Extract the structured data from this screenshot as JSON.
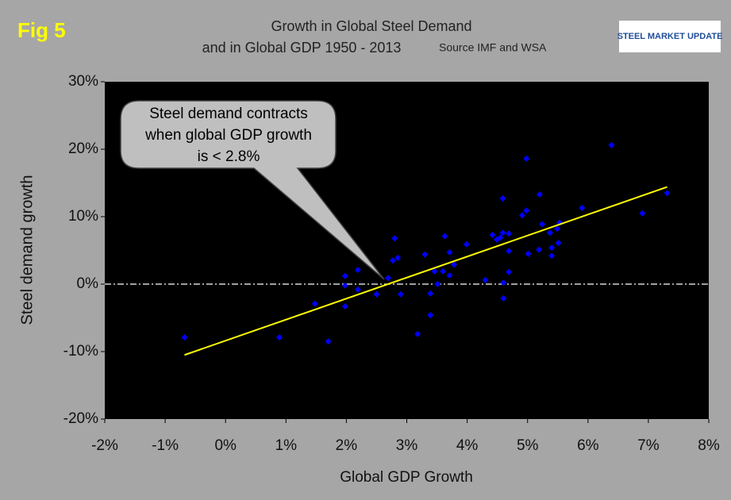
{
  "chart_data": {
    "type": "scatter",
    "figure_label": "Fig 5",
    "title": [
      "Growth in Global Steel Demand",
      "and in Global GDP 1950 - 2013"
    ],
    "source": "Source IMF and WSA",
    "logo": "STEEL MARKET UPDATE",
    "x_label": "Global GDP Growth",
    "y_label": "Steel demand growth",
    "annotation": [
      "Steel demand contracts",
      "when global GDP growth",
      "is < 2.8%"
    ],
    "xlim": [
      -2,
      8
    ],
    "ylim": [
      -20,
      30
    ],
    "xticks": [
      {
        "value": -2,
        "label": "-2%"
      },
      {
        "value": -1,
        "label": "-1%"
      },
      {
        "value": 0,
        "label": "0%"
      },
      {
        "value": 1,
        "label": "1%"
      },
      {
        "value": 2,
        "label": "2%"
      },
      {
        "value": 3,
        "label": "3%"
      },
      {
        "value": 4,
        "label": "4%"
      },
      {
        "value": 5,
        "label": "5%"
      },
      {
        "value": 6,
        "label": "6%"
      },
      {
        "value": 7,
        "label": "7%"
      },
      {
        "value": 8,
        "label": "8%"
      }
    ],
    "yticks": [
      {
        "value": -20,
        "label": "-20%"
      },
      {
        "value": -10,
        "label": "-10%"
      },
      {
        "value": 0,
        "label": "0%"
      },
      {
        "value": 10,
        "label": "10%"
      },
      {
        "value": 20,
        "label": "20%"
      },
      {
        "value": 30,
        "label": "30%"
      }
    ],
    "series": [
      {
        "color": "#0000ff",
        "x": [
          -0.68,
          0.89,
          1.48,
          1.7,
          1.98,
          1.98,
          1.98,
          2.19,
          2.19,
          2.5,
          2.69,
          2.8,
          2.77,
          2.85,
          2.9,
          3.18,
          3.3,
          3.39,
          3.39,
          3.46,
          3.51,
          3.6,
          3.63,
          3.71,
          3.71,
          3.78,
          3.99,
          4.3,
          4.42,
          4.49,
          4.55,
          4.59,
          4.59,
          4.6,
          4.6,
          4.69,
          4.69,
          4.69,
          4.91,
          4.98,
          4.98,
          5.01,
          5.2,
          5.19,
          5.24,
          5.37,
          5.4,
          5.4,
          5.49,
          5.51,
          5.53,
          5.9,
          6.39,
          6.9,
          7.31
        ],
        "values": [
          -7.9,
          -7.9,
          -2.9,
          -8.5,
          1.2,
          -0.2,
          -3.3,
          2.1,
          -0.8,
          -1.5,
          0.9,
          6.8,
          3.5,
          3.9,
          -1.5,
          -7.4,
          4.4,
          -1.4,
          -4.6,
          1.9,
          0,
          1.9,
          7.1,
          4.7,
          1.3,
          2.9,
          5.9,
          0.6,
          7.3,
          6.6,
          6.9,
          12.7,
          7.6,
          0.2,
          -2.1,
          7.5,
          4.9,
          1.8,
          10.2,
          18.6,
          10.9,
          4.5,
          13.3,
          5.1,
          8.9,
          7.6,
          5.4,
          4.2,
          8.2,
          6.1,
          9.1,
          11.3,
          20.6,
          10.5,
          13.5
        ]
      }
    ],
    "trendline": {
      "color": "#ffff00",
      "x": [
        -0.68,
        7.31
      ],
      "values": [
        -10.5,
        14.4
      ]
    }
  }
}
